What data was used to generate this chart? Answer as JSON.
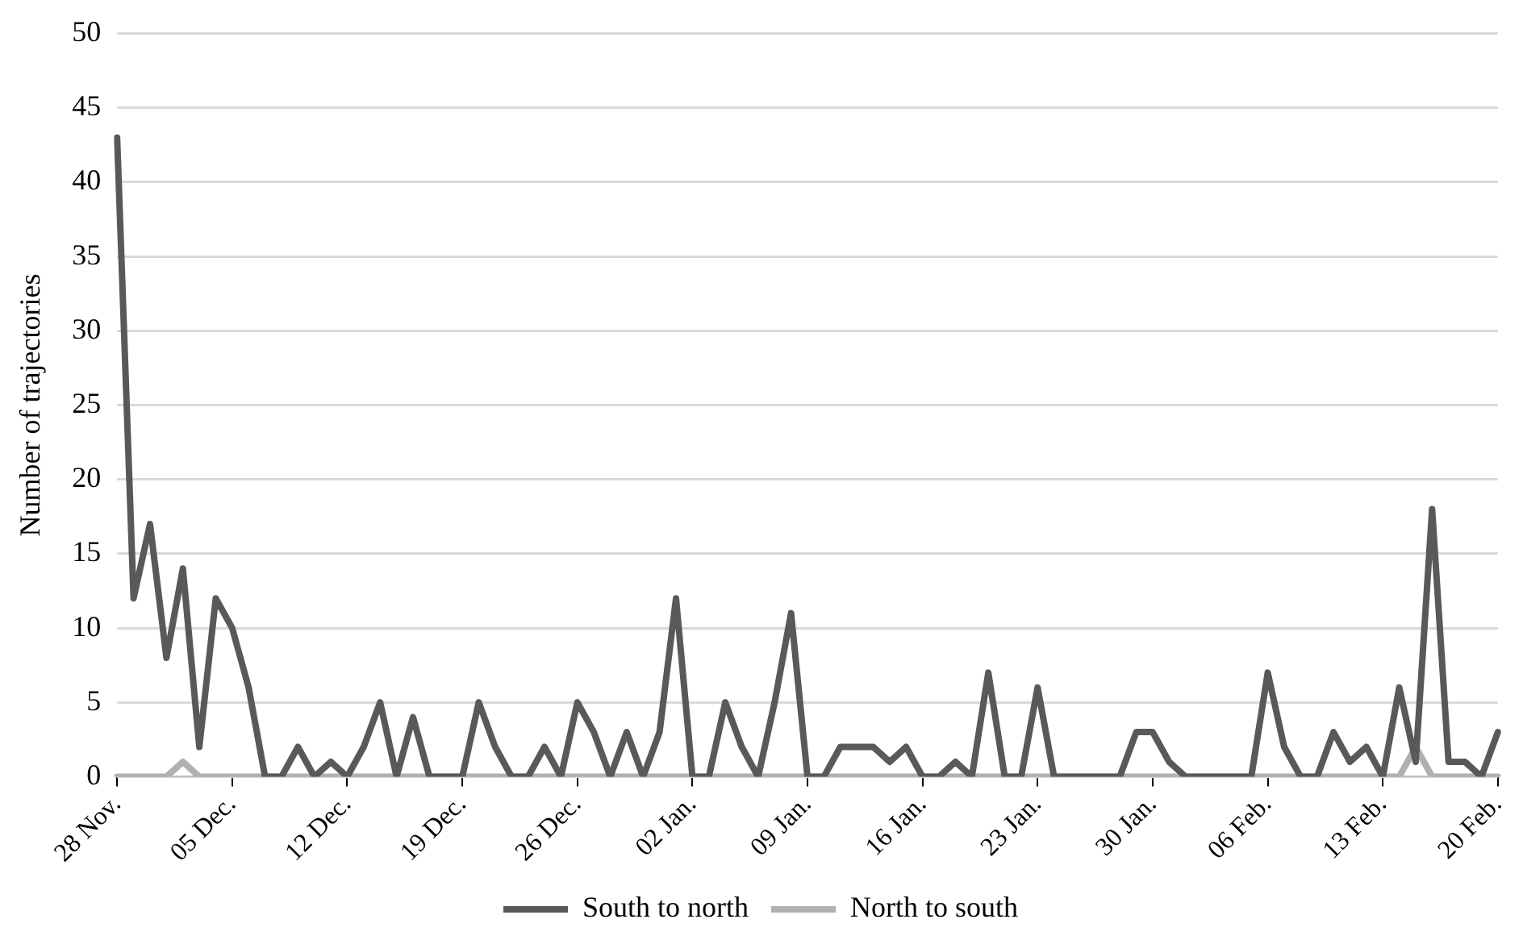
{
  "chart_data": {
    "type": "line",
    "ylabel": "Number of trajectories",
    "categories": [
      "28 Nov.",
      null,
      null,
      null,
      null,
      null,
      null,
      "05 Dec.",
      null,
      null,
      null,
      null,
      null,
      null,
      "12 Dec.",
      null,
      null,
      null,
      null,
      null,
      null,
      "19 Dec.",
      null,
      null,
      null,
      null,
      null,
      null,
      "26 Dec.",
      null,
      null,
      null,
      null,
      null,
      null,
      "02 Jan.",
      null,
      null,
      null,
      null,
      null,
      null,
      "09 Jan.",
      null,
      null,
      null,
      null,
      null,
      null,
      "16 Jan.",
      null,
      null,
      null,
      null,
      null,
      null,
      "23 Jan.",
      null,
      null,
      null,
      null,
      null,
      null,
      "30 Jan.",
      null,
      null,
      null,
      null,
      null,
      null,
      "06 Feb.",
      null,
      null,
      null,
      null,
      null,
      null,
      "13 Feb.",
      null,
      null,
      null,
      null,
      null,
      null,
      "20 Feb."
    ],
    "series": [
      {
        "name": "South to north",
        "color": "#595959",
        "values": [
          43,
          12,
          17,
          8,
          14,
          2,
          12,
          10,
          6,
          0,
          0,
          2,
          0,
          1,
          0,
          2,
          5,
          0,
          4,
          0,
          0,
          0,
          5,
          2,
          0,
          0,
          2,
          0,
          5,
          3,
          0,
          3,
          0,
          3,
          12,
          0,
          0,
          5,
          2,
          0,
          5,
          11,
          0,
          0,
          2,
          2,
          2,
          1,
          2,
          0,
          0,
          1,
          0,
          7,
          0,
          0,
          6,
          0,
          0,
          0,
          0,
          0,
          3,
          3,
          1,
          0,
          0,
          0,
          0,
          0,
          7,
          2,
          0,
          0,
          3,
          1,
          2,
          0,
          6,
          1,
          18,
          1,
          1,
          0,
          3
        ]
      },
      {
        "name": "North to south",
        "color": "#b0b0b0",
        "values": [
          0,
          0,
          0,
          0,
          1,
          0,
          0,
          0,
          0,
          0,
          0,
          0,
          0,
          0,
          0,
          0,
          0,
          0,
          0,
          0,
          0,
          0,
          0,
          0,
          0,
          0,
          0,
          0,
          0,
          0,
          0,
          0,
          0,
          0,
          0,
          0,
          0,
          0,
          0,
          0,
          0,
          0,
          0,
          0,
          0,
          0,
          0,
          0,
          0,
          0,
          0,
          0,
          0,
          0,
          0,
          0,
          0,
          0,
          0,
          0,
          0,
          0,
          0,
          0,
          0,
          0,
          0,
          0,
          0,
          0,
          0,
          0,
          0,
          0,
          0,
          0,
          0,
          0,
          0,
          2,
          0,
          0,
          0,
          0,
          0
        ]
      }
    ],
    "ylim": [
      0,
      50
    ],
    "yticks": [
      0,
      5,
      10,
      15,
      20,
      25,
      30,
      35,
      40,
      45,
      50
    ],
    "grid": "y",
    "legend": "bottom",
    "marker": "none",
    "line_style": "solid"
  }
}
